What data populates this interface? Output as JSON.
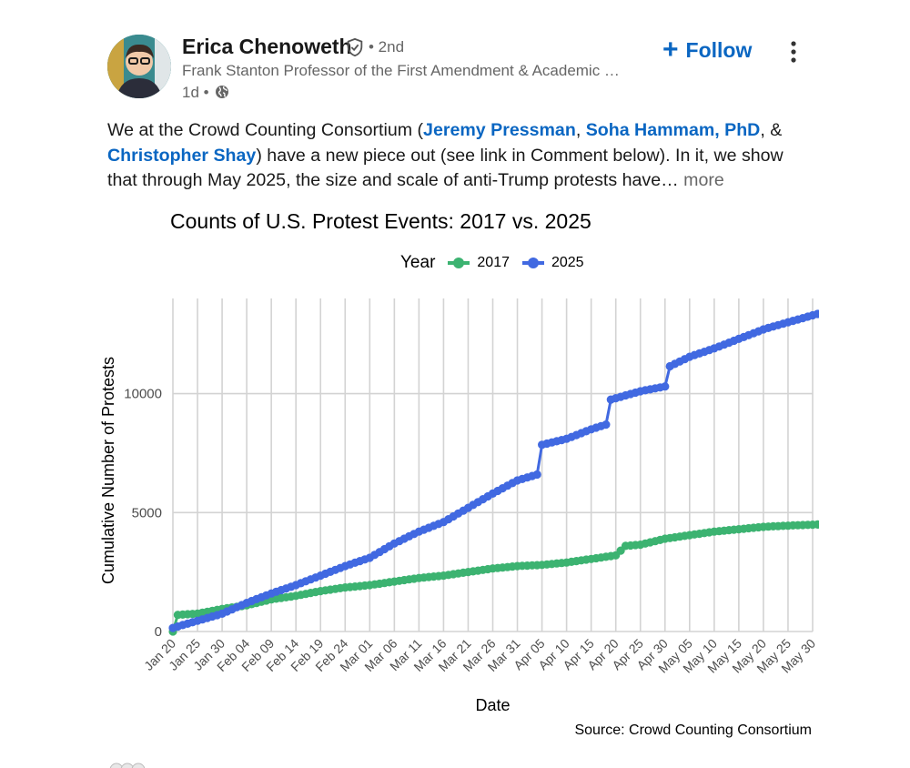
{
  "author": {
    "name": "Erica Chenoweth",
    "degree": "• 2nd",
    "headline": "Frank Stanton Professor of the First Amendment & Academic …",
    "time": "1d •",
    "follow_label": "Follow"
  },
  "post": {
    "line1_prefix": "We at the Crowd Counting Consortium (",
    "mention1": "Jeremy Pressman",
    "sep1": ", ",
    "mention2": "Soha Hammam, PhD",
    "sep2": ", &",
    "mention3": "Christopher Shay",
    "line2_suffix": ") have a new piece out (see link in Comment below). In it, we show",
    "line3": "that through May 2025, the size and scale of anti-Trump protests have…",
    "more_label": " more"
  },
  "colors": {
    "link": "#0a66c2",
    "series_2017": "#3cb371",
    "series_2025": "#4169e1",
    "grid": "#d3d3d3"
  },
  "chart_data": {
    "type": "line",
    "title": "Counts of U.S. Protest Events: 2017 vs. 2025",
    "xlabel": "Date",
    "ylabel": "Cumulative Number of Protests",
    "legend_title": "Year",
    "legend_position": "top",
    "source": "Source: Crowd Counting Consortium",
    "ylim": [
      0,
      14000
    ],
    "yticks": [
      0,
      5000,
      10000
    ],
    "x_tick_labels": [
      "Jan 20",
      "Jan 25",
      "Jan 30",
      "Feb 04",
      "Feb 09",
      "Feb 14",
      "Feb 19",
      "Feb 24",
      "Mar 01",
      "Mar 06",
      "Mar 11",
      "Mar 16",
      "Mar 21",
      "Mar 26",
      "Mar 31",
      "Apr 05",
      "Apr 10",
      "Apr 15",
      "Apr 20",
      "Apr 25",
      "Apr 30",
      "May 05",
      "May 10",
      "May 15",
      "May 20",
      "May 25",
      "May 30"
    ],
    "grid": true,
    "series": [
      {
        "name": "2017",
        "color": "#3cb371",
        "points": [
          [
            "Jan 20",
            0
          ],
          [
            "Jan 21",
            700
          ],
          [
            "Jan 25",
            750
          ],
          [
            "Jan 30",
            950
          ],
          [
            "Feb 04",
            1100
          ],
          [
            "Feb 09",
            1350
          ],
          [
            "Feb 14",
            1500
          ],
          [
            "Feb 19",
            1700
          ],
          [
            "Feb 24",
            1850
          ],
          [
            "Mar 01",
            1950
          ],
          [
            "Mar 06",
            2100
          ],
          [
            "Mar 11",
            2250
          ],
          [
            "Mar 16",
            2350
          ],
          [
            "Mar 21",
            2500
          ],
          [
            "Mar 26",
            2650
          ],
          [
            "Mar 31",
            2750
          ],
          [
            "Apr 05",
            2800
          ],
          [
            "Apr 10",
            2900
          ],
          [
            "Apr 15",
            3050
          ],
          [
            "Apr 20",
            3200
          ],
          [
            "Apr 22",
            3600
          ],
          [
            "Apr 25",
            3650
          ],
          [
            "Apr 30",
            3900
          ],
          [
            "May 05",
            4050
          ],
          [
            "May 10",
            4200
          ],
          [
            "May 15",
            4300
          ],
          [
            "May 20",
            4400
          ],
          [
            "May 25",
            4450
          ],
          [
            "May 31",
            4500
          ]
        ]
      },
      {
        "name": "2025",
        "color": "#4169e1",
        "points": [
          [
            "Jan 20",
            150
          ],
          [
            "Jan 25",
            450
          ],
          [
            "Jan 30",
            750
          ],
          [
            "Feb 04",
            1200
          ],
          [
            "Feb 09",
            1600
          ],
          [
            "Feb 14",
            1950
          ],
          [
            "Feb 19",
            2350
          ],
          [
            "Feb 24",
            2750
          ],
          [
            "Mar 01",
            3100
          ],
          [
            "Mar 06",
            3700
          ],
          [
            "Mar 11",
            4200
          ],
          [
            "Mar 16",
            4600
          ],
          [
            "Mar 21",
            5200
          ],
          [
            "Mar 26",
            5800
          ],
          [
            "Mar 31",
            6350
          ],
          [
            "Apr 04",
            6600
          ],
          [
            "Apr 05",
            7850
          ],
          [
            "Apr 10",
            8100
          ],
          [
            "Apr 15",
            8500
          ],
          [
            "Apr 18",
            8700
          ],
          [
            "Apr 19",
            9750
          ],
          [
            "Apr 25",
            10100
          ],
          [
            "Apr 30",
            10300
          ],
          [
            "May 01",
            11150
          ],
          [
            "May 05",
            11550
          ],
          [
            "May 10",
            11900
          ],
          [
            "May 15",
            12300
          ],
          [
            "May 20",
            12700
          ],
          [
            "May 25",
            13000
          ],
          [
            "May 31",
            13350
          ]
        ]
      }
    ]
  }
}
